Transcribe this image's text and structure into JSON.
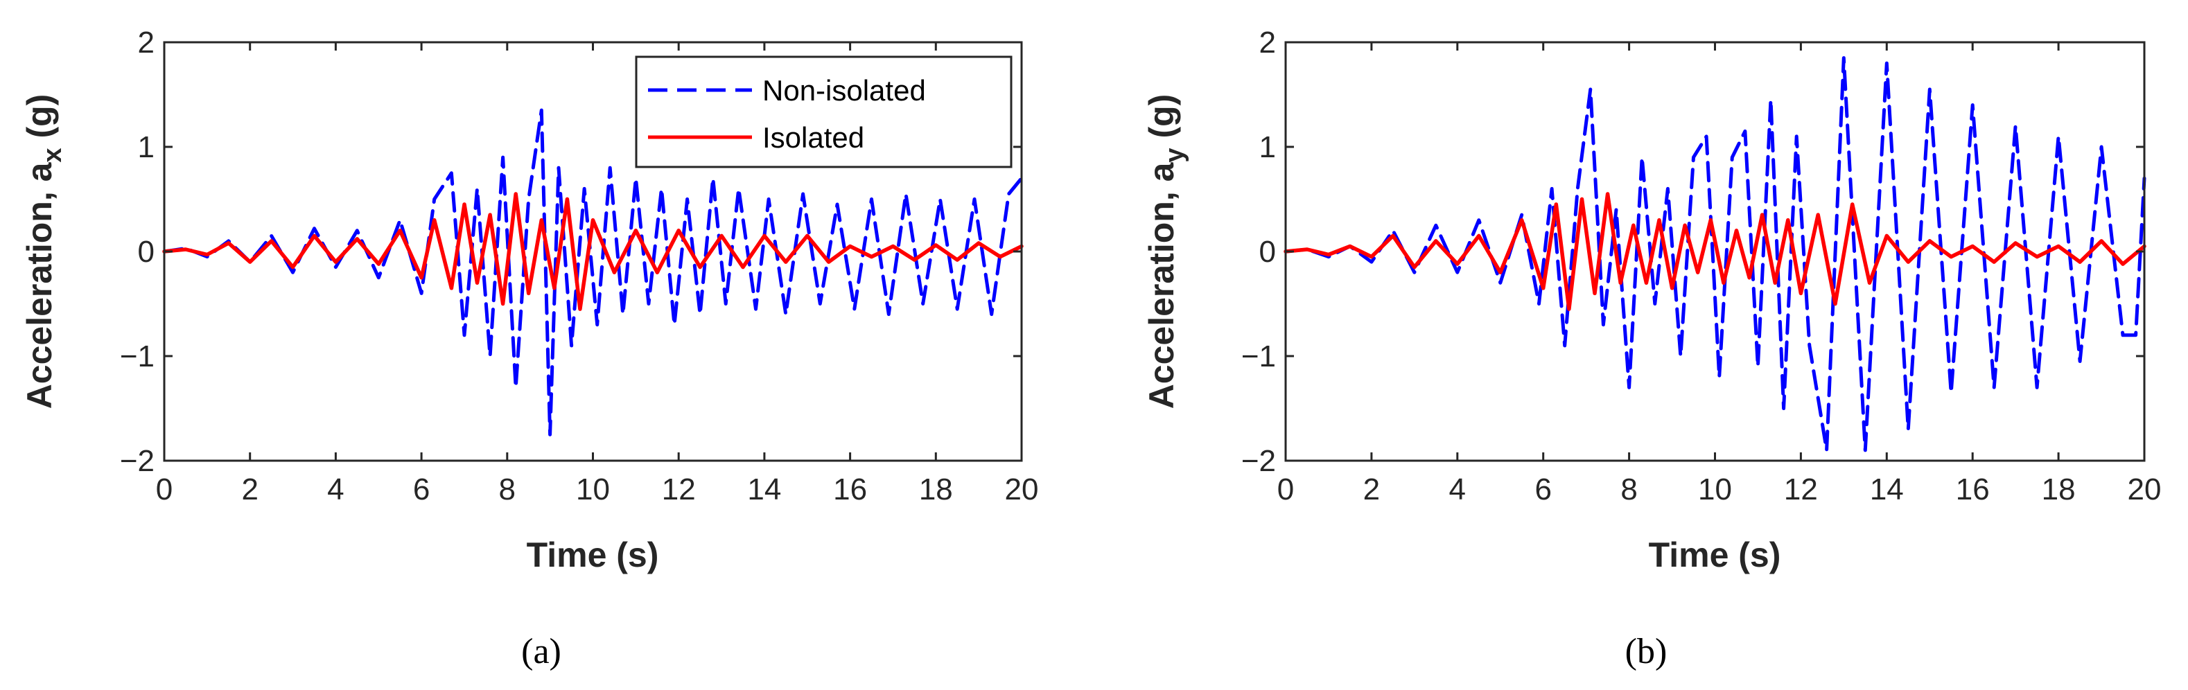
{
  "chart_data": [
    {
      "type": "line",
      "panel": "a",
      "caption": "(a)",
      "title": "",
      "xlabel": "Time (s)",
      "ylabel_main": "Acceleration, a",
      "ylabel_sub": "x",
      "ylabel_unit": " (g)",
      "xlim": [
        0,
        20
      ],
      "ylim": [
        -2,
        2
      ],
      "xticks": [
        "0",
        "2",
        "4",
        "6",
        "8",
        "10",
        "12",
        "14",
        "16",
        "18",
        "20"
      ],
      "yticks": [
        "-2",
        "-1",
        "0",
        "1",
        "2"
      ],
      "grid": false,
      "legend": {
        "placement": "top-right",
        "entries": [
          "Non-isolated",
          "Isolated"
        ]
      },
      "series": [
        {
          "name": "Non-isolated",
          "color": "#0000ff",
          "style": "dashed",
          "x": [
            0,
            0.5,
            1.0,
            1.5,
            2.0,
            2.5,
            3.0,
            3.5,
            4.0,
            4.5,
            5.0,
            5.5,
            6.0,
            6.3,
            6.7,
            7.0,
            7.3,
            7.6,
            7.9,
            8.2,
            8.5,
            8.8,
            9.0,
            9.2,
            9.5,
            9.8,
            10.1,
            10.4,
            10.7,
            11.0,
            11.3,
            11.6,
            11.9,
            12.2,
            12.5,
            12.8,
            13.1,
            13.4,
            13.8,
            14.1,
            14.5,
            14.9,
            15.3,
            15.7,
            16.1,
            16.5,
            16.9,
            17.3,
            17.7,
            18.1,
            18.5,
            18.9,
            19.3,
            19.7,
            20.0
          ],
          "y": [
            0,
            0.03,
            -0.05,
            0.1,
            -0.1,
            0.15,
            -0.2,
            0.22,
            -0.15,
            0.2,
            -0.25,
            0.3,
            -0.4,
            0.5,
            0.75,
            -0.8,
            0.6,
            -1.0,
            0.9,
            -1.3,
            0.5,
            1.35,
            -1.75,
            0.8,
            -0.9,
            0.6,
            -0.7,
            0.8,
            -0.6,
            0.7,
            -0.5,
            0.6,
            -0.7,
            0.5,
            -0.6,
            0.7,
            -0.5,
            0.6,
            -0.55,
            0.5,
            -0.6,
            0.55,
            -0.5,
            0.45,
            -0.55,
            0.5,
            -0.6,
            0.55,
            -0.5,
            0.5,
            -0.55,
            0.5,
            -0.6,
            0.55,
            0.7
          ]
        },
        {
          "name": "Isolated",
          "color": "#ff0000",
          "style": "solid",
          "x": [
            0,
            0.5,
            1.0,
            1.5,
            2.0,
            2.5,
            3.0,
            3.5,
            4.0,
            4.5,
            5.0,
            5.5,
            6.0,
            6.3,
            6.7,
            7.0,
            7.3,
            7.6,
            7.9,
            8.2,
            8.5,
            8.8,
            9.1,
            9.4,
            9.7,
            10.0,
            10.5,
            11.0,
            11.5,
            12.0,
            12.5,
            13.0,
            13.5,
            14.0,
            14.5,
            15.0,
            15.5,
            16.0,
            16.5,
            17.0,
            17.5,
            18.0,
            18.5,
            19.0,
            19.5,
            20.0
          ],
          "y": [
            0,
            0.02,
            -0.03,
            0.08,
            -0.1,
            0.1,
            -0.15,
            0.15,
            -0.1,
            0.12,
            -0.12,
            0.2,
            -0.25,
            0.3,
            -0.35,
            0.45,
            -0.3,
            0.35,
            -0.5,
            0.55,
            -0.4,
            0.3,
            -0.35,
            0.5,
            -0.55,
            0.3,
            -0.2,
            0.2,
            -0.2,
            0.2,
            -0.15,
            0.15,
            -0.15,
            0.15,
            -0.1,
            0.15,
            -0.1,
            0.05,
            -0.05,
            0.05,
            -0.08,
            0.06,
            -0.08,
            0.08,
            -0.05,
            0.05
          ]
        }
      ]
    },
    {
      "type": "line",
      "panel": "b",
      "caption": "(b)",
      "title": "",
      "xlabel": "Time (s)",
      "ylabel_main": "Acceleration, a",
      "ylabel_sub": "y",
      "ylabel_unit": " (g)",
      "xlim": [
        0,
        20
      ],
      "ylim": [
        -2,
        2
      ],
      "xticks": [
        "0",
        "2",
        "4",
        "6",
        "8",
        "10",
        "12",
        "14",
        "16",
        "18",
        "20"
      ],
      "yticks": [
        "-2",
        "-1",
        "0",
        "1",
        "2"
      ],
      "grid": false,
      "series": [
        {
          "name": "Non-isolated",
          "color": "#0000ff",
          "style": "dashed",
          "x": [
            0,
            0.5,
            1.0,
            1.5,
            2.0,
            2.5,
            3.0,
            3.5,
            4.0,
            4.5,
            5.0,
            5.5,
            5.9,
            6.2,
            6.5,
            6.8,
            7.1,
            7.4,
            7.7,
            8.0,
            8.3,
            8.6,
            8.9,
            9.2,
            9.5,
            9.8,
            10.1,
            10.4,
            10.7,
            11.0,
            11.3,
            11.6,
            11.9,
            12.2,
            12.6,
            13.0,
            13.5,
            14.0,
            14.5,
            15.0,
            15.5,
            16.0,
            16.5,
            17.0,
            17.5,
            18.0,
            18.5,
            19.0,
            19.5,
            19.8,
            20.0
          ],
          "y": [
            0,
            0.02,
            -0.05,
            0.05,
            -0.1,
            0.2,
            -0.2,
            0.25,
            -0.2,
            0.3,
            -0.3,
            0.35,
            -0.5,
            0.6,
            -0.9,
            0.6,
            1.55,
            -0.7,
            0.4,
            -1.3,
            0.9,
            -0.5,
            0.6,
            -1.0,
            0.9,
            1.1,
            -1.2,
            0.9,
            1.15,
            -1.1,
            1.45,
            -1.5,
            1.1,
            -0.9,
            -1.9,
            1.85,
            -1.9,
            1.8,
            -1.7,
            1.55,
            -1.35,
            1.4,
            -1.3,
            1.2,
            -1.3,
            1.1,
            -1.05,
            1.0,
            -0.8,
            -0.8,
            0.7
          ]
        },
        {
          "name": "Isolated",
          "color": "#ff0000",
          "style": "solid",
          "x": [
            0,
            0.5,
            1.0,
            1.5,
            2.0,
            2.5,
            3.0,
            3.5,
            4.0,
            4.5,
            5.0,
            5.5,
            6.0,
            6.3,
            6.6,
            6.9,
            7.2,
            7.5,
            7.8,
            8.1,
            8.4,
            8.7,
            9.0,
            9.3,
            9.6,
            9.9,
            10.2,
            10.5,
            10.8,
            11.1,
            11.4,
            11.7,
            12.0,
            12.4,
            12.8,
            13.2,
            13.6,
            14.0,
            14.5,
            15.0,
            15.5,
            16.0,
            16.5,
            17.0,
            17.5,
            18.0,
            18.5,
            19.0,
            19.5,
            20.0
          ],
          "y": [
            0,
            0.02,
            -0.03,
            0.05,
            -0.05,
            0.15,
            -0.15,
            0.1,
            -0.12,
            0.15,
            -0.2,
            0.3,
            -0.35,
            0.45,
            -0.55,
            0.5,
            -0.4,
            0.55,
            -0.3,
            0.25,
            -0.3,
            0.3,
            -0.35,
            0.25,
            -0.2,
            0.3,
            -0.3,
            0.2,
            -0.25,
            0.35,
            -0.3,
            0.3,
            -0.4,
            0.35,
            -0.5,
            0.45,
            -0.3,
            0.15,
            -0.1,
            0.1,
            -0.05,
            0.05,
            -0.1,
            0.08,
            -0.05,
            0.05,
            -0.1,
            0.1,
            -0.12,
            0.05
          ]
        }
      ]
    }
  ]
}
